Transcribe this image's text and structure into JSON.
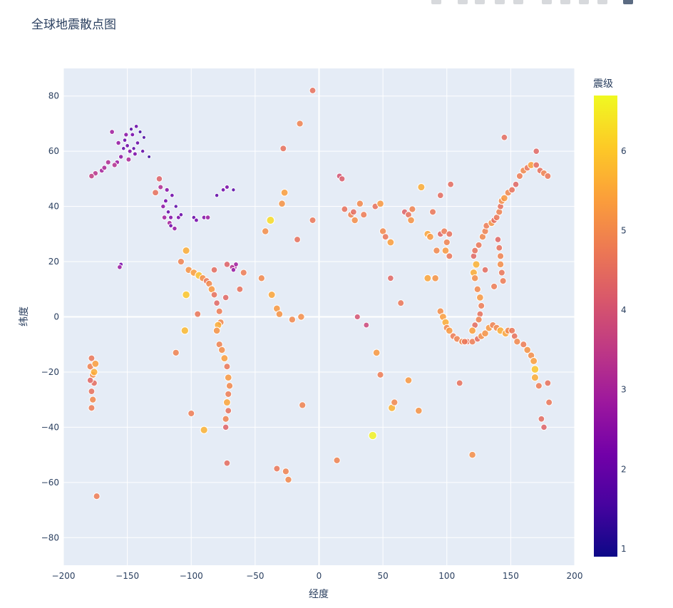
{
  "chart_data": {
    "type": "scatter",
    "title": "全球地震散点图",
    "xlabel": "经度",
    "ylabel": "纬度",
    "xlim": [
      -200,
      200
    ],
    "ylim": [
      -90,
      90
    ],
    "xticks": [
      -200,
      -150,
      -100,
      -50,
      0,
      50,
      100,
      150,
      200
    ],
    "yticks": [
      -80,
      -60,
      -40,
      -20,
      0,
      20,
      40,
      60,
      80
    ],
    "grid": true,
    "colorbar": {
      "title": "震级",
      "min": 0.9,
      "max": 6.7,
      "ticks": [
        1,
        2,
        3,
        4,
        5,
        6
      ],
      "colorscale": "plasma"
    },
    "points": [
      [
        -150,
        62,
        2.1
      ],
      [
        -148,
        60,
        2.4
      ],
      [
        -152,
        64,
        2.0
      ],
      [
        -146,
        66,
        2.2
      ],
      [
        -155,
        58,
        2.6
      ],
      [
        -158,
        56,
        2.8
      ],
      [
        -145,
        61,
        1.8
      ],
      [
        -142,
        63,
        2.0
      ],
      [
        -149,
        57,
        3.1
      ],
      [
        -153,
        61,
        1.9
      ],
      [
        -140,
        67,
        1.5
      ],
      [
        -147,
        68,
        1.7
      ],
      [
        -165,
        56,
        3.2
      ],
      [
        -170,
        53,
        3.0
      ],
      [
        -175,
        52,
        3.4
      ],
      [
        -178,
        51,
        3.6
      ],
      [
        -168,
        54,
        3.1
      ],
      [
        -160,
        55,
        3.3
      ],
      [
        -144,
        59,
        2.3
      ],
      [
        -151,
        66,
        2.5
      ],
      [
        -137,
        65,
        1.6
      ],
      [
        -143,
        69,
        2.0
      ],
      [
        -157,
        63,
        2.7
      ],
      [
        -162,
        67,
        2.9
      ],
      [
        -133,
        58,
        1.4
      ],
      [
        -138,
        60,
        1.9
      ],
      [
        -120,
        42,
        2.2
      ],
      [
        -118,
        38,
        2.0
      ],
      [
        -116,
        36,
        2.4
      ],
      [
        -122,
        40,
        2.6
      ],
      [
        -117,
        34,
        3.0
      ],
      [
        -115,
        44,
        2.1
      ],
      [
        -112,
        40,
        1.8
      ],
      [
        -119,
        46,
        2.5
      ],
      [
        -124,
        47,
        3.2
      ],
      [
        -110,
        36,
        2.3
      ],
      [
        -113,
        32,
        2.7
      ],
      [
        -108,
        37,
        2.0
      ],
      [
        -121,
        36,
        2.9
      ],
      [
        -116,
        33,
        2.1
      ],
      [
        -125,
        50,
        4.3
      ],
      [
        -128,
        45,
        4.6
      ],
      [
        -98,
        36,
        2.0
      ],
      [
        -96,
        35,
        2.2
      ],
      [
        -90,
        36,
        2.4
      ],
      [
        -87,
        36,
        2.8
      ],
      [
        -80,
        44,
        1.9
      ],
      [
        -75,
        46,
        2.1
      ],
      [
        -72,
        47,
        2.3
      ],
      [
        -67,
        46,
        1.8
      ],
      [
        -155,
        19,
        2.2
      ],
      [
        -156,
        18,
        2.8
      ],
      [
        -66,
        18,
        3.0
      ],
      [
        -65,
        19,
        2.9
      ],
      [
        -68,
        18,
        3.3
      ],
      [
        -67,
        17,
        2.7
      ],
      [
        -104,
        24,
        5.6
      ],
      [
        -108,
        20,
        4.9
      ],
      [
        -102,
        17,
        5.2
      ],
      [
        -98,
        16,
        5.4
      ],
      [
        -94,
        15,
        5.9
      ],
      [
        -91,
        14,
        5.1
      ],
      [
        -88,
        13,
        4.7
      ],
      [
        -86,
        12,
        5.0
      ],
      [
        -84,
        10,
        5.3
      ],
      [
        -82,
        8,
        4.6
      ],
      [
        -80,
        5,
        4.4
      ],
      [
        -78,
        2,
        4.8
      ],
      [
        -77,
        -2,
        5.0
      ],
      [
        -79,
        -3,
        5.6
      ],
      [
        -80,
        -5,
        5.2
      ],
      [
        -78,
        -10,
        4.9
      ],
      [
        -76,
        -12,
        5.1
      ],
      [
        -74,
        -15,
        5.4
      ],
      [
        -72,
        -18,
        4.7
      ],
      [
        -71,
        -22,
        5.3
      ],
      [
        -70,
        -25,
        5.0
      ],
      [
        -71,
        -28,
        4.8
      ],
      [
        -72,
        -31,
        5.5
      ],
      [
        -71,
        -34,
        4.6
      ],
      [
        -73,
        -37,
        4.9
      ],
      [
        -73,
        -40,
        4.3
      ],
      [
        -72,
        -53,
        4.5
      ],
      [
        -104,
        8,
        6.0
      ],
      [
        -105,
        -5,
        5.8
      ],
      [
        -112,
        -13,
        4.9
      ],
      [
        -100,
        -35,
        4.8
      ],
      [
        -90,
        -41,
        5.7
      ],
      [
        -95,
        1,
        4.7
      ],
      [
        -73,
        7,
        4.4
      ],
      [
        -62,
        10,
        4.6
      ],
      [
        -59,
        16,
        4.8
      ],
      [
        -72,
        19,
        4.3
      ],
      [
        -82,
        17,
        4.5
      ],
      [
        -178,
        -15,
        4.7
      ],
      [
        -179,
        -18,
        4.9
      ],
      [
        -177,
        -21,
        5.1
      ],
      [
        -176,
        -24,
        4.5
      ],
      [
        -178,
        -27,
        4.6
      ],
      [
        -177,
        -30,
        5.0
      ],
      [
        -178,
        -33,
        4.8
      ],
      [
        -175,
        -17,
        5.4
      ],
      [
        -179,
        -23,
        4.4
      ],
      [
        -176,
        -20,
        5.6
      ],
      [
        -174,
        -65,
        4.8
      ],
      [
        -45,
        14,
        5.0
      ],
      [
        -38,
        35,
        6.3
      ],
      [
        -42,
        31,
        5.1
      ],
      [
        -29,
        41,
        5.2
      ],
      [
        -27,
        45,
        5.4
      ],
      [
        -28,
        61,
        4.6
      ],
      [
        -37,
        8,
        5.5
      ],
      [
        -33,
        3,
        5.3
      ],
      [
        -31,
        1,
        5.2
      ],
      [
        -21,
        -1,
        5.0
      ],
      [
        -14,
        0,
        5.1
      ],
      [
        -13,
        -32,
        4.9
      ],
      [
        -5,
        82,
        4.6
      ],
      [
        -5,
        35,
        4.7
      ],
      [
        -15,
        70,
        4.9
      ],
      [
        -17,
        28,
        4.6
      ],
      [
        -33,
        -55,
        4.7
      ],
      [
        -26,
        -56,
        4.9
      ],
      [
        -24,
        -59,
        5.0
      ],
      [
        14,
        -52,
        4.9
      ],
      [
        42,
        -43,
        6.6
      ],
      [
        57,
        -33,
        5.7
      ],
      [
        59,
        -31,
        5.0
      ],
      [
        70,
        -23,
        5.3
      ],
      [
        78,
        -34,
        5.2
      ],
      [
        45,
        -13,
        5.3
      ],
      [
        30,
        0,
        4.0
      ],
      [
        37,
        -3,
        3.8
      ],
      [
        48,
        -21,
        4.8
      ],
      [
        64,
        5,
        4.7
      ],
      [
        56,
        14,
        4.4
      ],
      [
        16,
        51,
        4.0
      ],
      [
        18,
        50,
        4.2
      ],
      [
        20,
        39,
        4.6
      ],
      [
        25,
        37,
        4.9
      ],
      [
        27,
        38,
        4.5
      ],
      [
        28,
        35,
        5.1
      ],
      [
        32,
        41,
        5.0
      ],
      [
        35,
        37,
        4.8
      ],
      [
        44,
        40,
        4.6
      ],
      [
        48,
        41,
        5.3
      ],
      [
        50,
        31,
        5.0
      ],
      [
        52,
        29,
        4.7
      ],
      [
        56,
        27,
        5.4
      ],
      [
        67,
        38,
        4.3
      ],
      [
        70,
        37,
        4.6
      ],
      [
        72,
        35,
        5.2
      ],
      [
        73,
        39,
        4.9
      ],
      [
        80,
        47,
        5.6
      ],
      [
        85,
        30,
        5.5
      ],
      [
        87,
        29,
        5.3
      ],
      [
        89,
        38,
        4.7
      ],
      [
        92,
        24,
        5.0
      ],
      [
        95,
        44,
        4.5
      ],
      [
        95,
        30,
        4.4
      ],
      [
        98,
        31,
        4.8
      ],
      [
        99,
        24,
        5.3
      ],
      [
        100,
        27,
        4.9
      ],
      [
        102,
        30,
        4.6
      ],
      [
        103,
        48,
        4.5
      ],
      [
        102,
        22,
        4.7
      ],
      [
        91,
        14,
        5.2
      ],
      [
        85,
        14,
        5.5
      ],
      [
        95,
        2,
        5.1
      ],
      [
        97,
        0,
        5.4
      ],
      [
        99,
        -2,
        5.6
      ],
      [
        100,
        -4,
        5.0
      ],
      [
        102,
        -5,
        5.3
      ],
      [
        105,
        -7,
        4.8
      ],
      [
        108,
        -8,
        4.9
      ],
      [
        112,
        -9,
        5.0
      ],
      [
        116,
        -9,
        4.6
      ],
      [
        120,
        -9,
        4.8
      ],
      [
        124,
        -8,
        4.5
      ],
      [
        127,
        -7,
        5.1
      ],
      [
        130,
        -6,
        5.2
      ],
      [
        133,
        -4,
        5.3
      ],
      [
        136,
        -3,
        4.9
      ],
      [
        139,
        -4,
        5.0
      ],
      [
        142,
        -5,
        5.6
      ],
      [
        146,
        -6,
        5.5
      ],
      [
        148,
        -5,
        5.0
      ],
      [
        151,
        -5,
        4.7
      ],
      [
        153,
        -7,
        4.6
      ],
      [
        155,
        -9,
        5.0
      ],
      [
        160,
        -10,
        4.8
      ],
      [
        163,
        -12,
        5.2
      ],
      [
        166,
        -14,
        5.1
      ],
      [
        168,
        -16,
        5.4
      ],
      [
        169,
        -19,
        6.0
      ],
      [
        169,
        -22,
        5.6
      ],
      [
        172,
        -25,
        4.8
      ],
      [
        174,
        -37,
        4.5
      ],
      [
        176,
        -40,
        4.3
      ],
      [
        179,
        -24,
        4.6
      ],
      [
        180,
        -31,
        4.7
      ],
      [
        110,
        -24,
        4.6
      ],
      [
        120,
        -50,
        5.1
      ],
      [
        114,
        -9,
        4.7
      ],
      [
        121,
        16,
        5.6
      ],
      [
        122,
        14,
        5.1
      ],
      [
        124,
        10,
        5.0
      ],
      [
        126,
        7,
        5.3
      ],
      [
        127,
        4,
        4.8
      ],
      [
        126,
        1,
        4.6
      ],
      [
        125,
        -1,
        4.9
      ],
      [
        122,
        -3,
        4.5
      ],
      [
        120,
        -5,
        5.4
      ],
      [
        123,
        19,
        5.7
      ],
      [
        121,
        22,
        4.4
      ],
      [
        122,
        24,
        4.6
      ],
      [
        125,
        26,
        4.7
      ],
      [
        128,
        29,
        5.0
      ],
      [
        130,
        31,
        4.9
      ],
      [
        131,
        33,
        4.8
      ],
      [
        135,
        34,
        5.2
      ],
      [
        137,
        35,
        4.5
      ],
      [
        139,
        36,
        4.7
      ],
      [
        141,
        38,
        4.9
      ],
      [
        142,
        40,
        4.6
      ],
      [
        143,
        42,
        5.1
      ],
      [
        145,
        43,
        5.3
      ],
      [
        148,
        45,
        5.0
      ],
      [
        151,
        46,
        4.6
      ],
      [
        154,
        48,
        4.4
      ],
      [
        157,
        51,
        4.8
      ],
      [
        160,
        53,
        5.0
      ],
      [
        163,
        54,
        4.7
      ],
      [
        166,
        55,
        5.4
      ],
      [
        170,
        55,
        4.5
      ],
      [
        173,
        53,
        4.6
      ],
      [
        176,
        52,
        4.9
      ],
      [
        179,
        51,
        4.7
      ],
      [
        140,
        28,
        4.4
      ],
      [
        141,
        25,
        4.6
      ],
      [
        142,
        22,
        4.9
      ],
      [
        142,
        19,
        5.1
      ],
      [
        143,
        16,
        4.7
      ],
      [
        144,
        13,
        4.8
      ],
      [
        145,
        65,
        4.5
      ],
      [
        170,
        60,
        4.4
      ],
      [
        137,
        11,
        4.8
      ],
      [
        130,
        17,
        4.5
      ]
    ]
  }
}
